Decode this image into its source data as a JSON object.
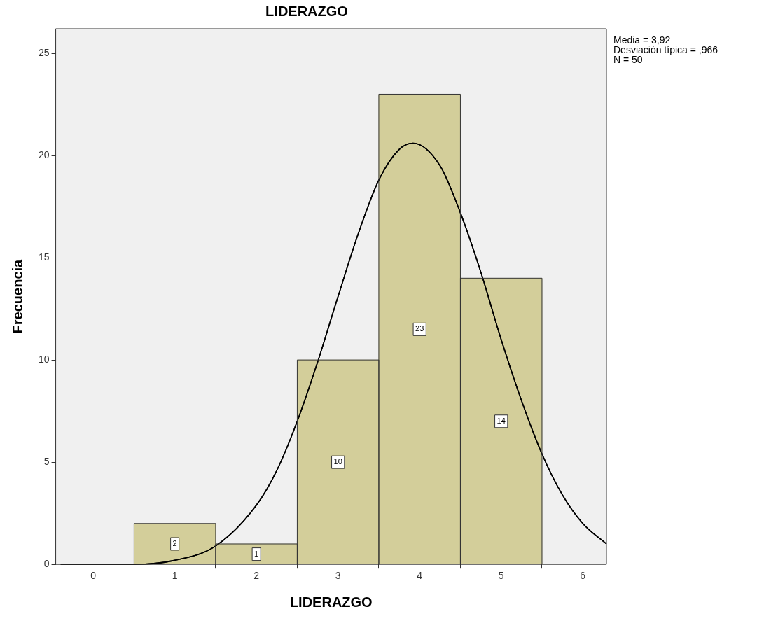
{
  "chart_data": {
    "type": "histogram",
    "title": "LIDERAZGO",
    "xlabel": "LIDERAZGO",
    "ylabel": "Frecuencia",
    "bins": [
      0.5,
      1.5,
      2.5,
      3.5,
      4.5,
      5.5
    ],
    "values": [
      2,
      1,
      10,
      23,
      14
    ],
    "color": "#d3ce9a",
    "value_labels": [
      "2",
      "1",
      "10",
      "23",
      "14"
    ],
    "series": [
      {
        "type": "line",
        "color": "#000000",
        "x": [
          -0.4,
          0,
          0.5,
          1,
          1.5,
          2,
          2.25,
          2.5,
          2.75,
          3,
          3.25,
          3.5,
          3.75,
          3.92,
          4.25,
          4.5,
          4.75,
          5,
          5.25,
          5.5,
          5.75,
          6,
          6.29
        ],
        "values": [
          0,
          0,
          0,
          0.2,
          0.9,
          2.9,
          4.6,
          7,
          9.9,
          13.1,
          16.2,
          18.8,
          20.3,
          20.6,
          19.5,
          17.2,
          14.3,
          11,
          8,
          5.4,
          3.4,
          2,
          1
        ]
      }
    ],
    "xlim": [
      -0.46,
      6.29
    ],
    "ylim": [
      0,
      26.2
    ],
    "xticks": [
      0,
      1,
      2,
      3,
      4,
      5,
      6
    ],
    "yticks": [
      0,
      5,
      10,
      15,
      20,
      25
    ],
    "annotations": [
      "Media = 3,92",
      "Desviación típica = ,966",
      "N = 50"
    ]
  }
}
